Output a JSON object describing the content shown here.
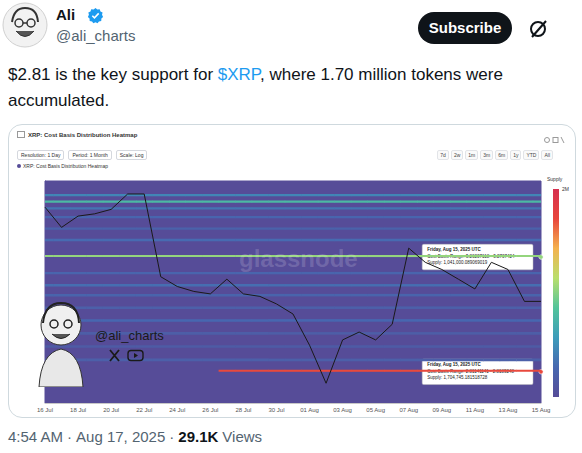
{
  "tweet": {
    "name": "Ali",
    "handle": "@ali_charts",
    "button": "Subscribe",
    "text": [
      {
        "text": "$2.81 is the key support for "
      },
      {
        "text": "$XRP",
        "link": true
      },
      {
        "text": ", where 1.70 million tokens were accumulated."
      }
    ],
    "time": "4:54 AM",
    "separator": "·",
    "date": "Aug 17, 2025",
    "views": "29.1K",
    "views_label": "Views"
  },
  "chart_data": {
    "type": "line",
    "title": "XRP: Cost Basis Distribution Heatmap",
    "controls": [
      "Resolution: 1 Day",
      "Period: 1 Month",
      "Scale: Log"
    ],
    "ranges": [
      "7d",
      "2w",
      "1m",
      "3m",
      "6m",
      "1y",
      "YTD",
      "All"
    ],
    "watermark": "glassnode",
    "overlay_handle": "@ali_charts",
    "categories": [
      "16 Jul",
      null,
      "18 Jul",
      null,
      "20 Jul",
      null,
      "22 Jul",
      null,
      "24 Jul",
      null,
      "26 Jul",
      null,
      "28 Jul",
      null,
      "30 Jul",
      null,
      "01 Aug",
      null,
      "03 Aug",
      null,
      "05 Aug",
      null,
      "07 Aug",
      null,
      "09 Aug",
      null,
      "11 Aug",
      null,
      "13 Aug",
      null,
      "15 Aug"
    ],
    "values": [
      3.48,
      3.39,
      3.44,
      3.45,
      3.47,
      3.54,
      3.54,
      3.18,
      3.14,
      3.12,
      3.11,
      3.17,
      3.11,
      3.1,
      3.07,
      3.03,
      2.91,
      2.77,
      2.93,
      2.96,
      2.93,
      2.99,
      3.3,
      3.24,
      3.21,
      3.17,
      3.13,
      3.24,
      3.21,
      3.08,
      3.08
    ],
    "color": "#1a1a1a",
    "ylim": [
      2.7,
      3.6
    ],
    "log": "y",
    "grid": false,
    "tick_labels": "x",
    "heatmap": {
      "name": "XRP: Cost Basis Distribution Heatmap",
      "bands": [
        {
          "low": 3.53,
          "high": 3.54,
          "supply": 450000
        },
        {
          "low": 3.5,
          "high": 3.51,
          "supply": 780000
        },
        {
          "low": 3.47,
          "high": 3.48,
          "supply": 350000
        },
        {
          "low": 3.43,
          "high": 3.44,
          "supply": 260000
        },
        {
          "low": 3.38,
          "high": 3.39,
          "supply": 220000
        },
        {
          "low": 3.33,
          "high": 3.34,
          "supply": 300000
        },
        {
          "low": 3.26207118,
          "high": 3.2707424,
          "supply": 1041000.089069019
        },
        {
          "low": 3.19,
          "high": 3.2,
          "supply": 250000
        },
        {
          "low": 3.14,
          "high": 3.15,
          "supply": 320000
        },
        {
          "low": 3.1,
          "high": 3.11,
          "supply": 240000
        },
        {
          "low": 3.05,
          "high": 3.06,
          "supply": 200000
        },
        {
          "low": 3.0,
          "high": 3.01,
          "supply": 280000
        },
        {
          "low": 2.95,
          "high": 2.96,
          "supply": 180000
        },
        {
          "low": 2.9,
          "high": 2.91,
          "supply": 150000
        },
        {
          "low": 2.85,
          "high": 2.86,
          "supply": 200000
        },
        {
          "low": 2.81141141,
          "high": 2.8189248,
          "supply": [
            null,
            null,
            null,
            null,
            null,
            null,
            null,
            null,
            null,
            null,
            null,
            1704745.181518728,
            1704745.181518728,
            1704745.181518728,
            1704745.181518728,
            1704745.181518728,
            1704745.181518728,
            1704745.181518728,
            1704745.181518728,
            1704745.181518728,
            1704745.181518728,
            1704745.181518728,
            1704745.181518728,
            1704745.181518728,
            1704745.181518728,
            1704745.181518728,
            1704745.181518728,
            1704745.181518728,
            1704745.181518728,
            1704745.181518728,
            1704745.181518728
          ]
        }
      ],
      "colorbar": {
        "label": "Supply",
        "range": [
          0,
          2000000
        ],
        "ticks": [
          {
            "value": 2000000,
            "label": "2M"
          }
        ]
      }
    },
    "annotations": [
      {
        "date": "Friday, Aug 15, 2025 UTC",
        "range_label": "Cost Basis Range:",
        "range": {
          "low": 3.26207118,
          "high": 3.2707424,
          "label": "3.26207118 - 3.2707424"
        },
        "supply_label": "Supply:",
        "supply": {
          "value": 1041000.089069019,
          "label": "1,041,000.089069019"
        }
      },
      {
        "date": "Friday, Aug 15, 2025 UTC",
        "range_label": "Cost Basis Range:",
        "range": {
          "low": 2.81141141,
          "high": 2.8189248,
          "label": "2.81141141 - 2.8189248"
        },
        "supply_label": "Supply:",
        "supply": {
          "value": 1704745.181518728,
          "label": "1,704,745.181518728"
        }
      }
    ]
  }
}
